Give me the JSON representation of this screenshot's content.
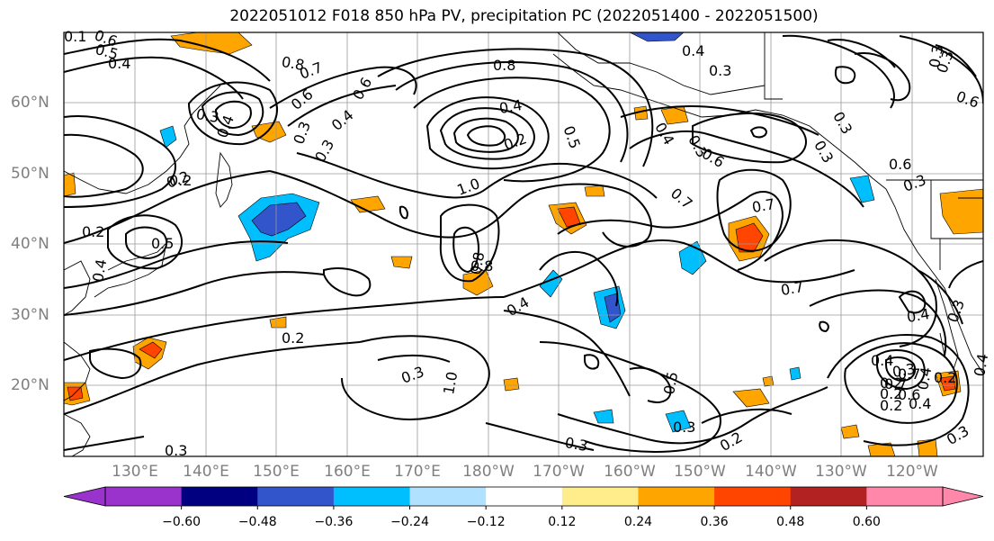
{
  "title": "2022051012 F018 850 hPa PV, precipitation PC (2022051400 - 2022051500)",
  "lat_labels": [
    "60°N",
    "50°N",
    "40°N",
    "30°N",
    "20°N"
  ],
  "lon_labels": [
    "130°E",
    "140°E",
    "150°E",
    "160°E",
    "170°E",
    "180°W",
    "170°W",
    "160°W",
    "150°W",
    "140°W",
    "130°W",
    "120°W"
  ],
  "colorbar": {
    "ticks": [
      "−0.60",
      "−0.48",
      "−0.36",
      "−0.24",
      "−0.12",
      "0.12",
      "0.24",
      "0.36",
      "0.48",
      "0.60"
    ],
    "colors": [
      "#9933cc",
      "#000080",
      "#3355cc",
      "#00bfff",
      "#b0e2ff",
      "#ffffff",
      "#ffec8b",
      "#ffa500",
      "#ff4500",
      "#b22222",
      "#ff88aa"
    ]
  },
  "contour_labels": [
    "0.1",
    "0.6",
    "0.5",
    "0.4",
    "0.8",
    "0.7",
    "0.6",
    "0.3",
    "0.4",
    "0.3",
    "0.8",
    "0.3",
    "0.4",
    "0.3",
    "0.3",
    "0.6",
    "0.3",
    "0.4",
    "0.3",
    "1.0",
    "0.6",
    "0.4",
    "0.3",
    "0.2",
    "0.5",
    "0.8",
    "0.4",
    "0.2",
    "0.6",
    "0.7",
    "0.3",
    "0.2",
    "0.7",
    "0.5",
    "0.3",
    "0.6",
    "0.4",
    "0.4",
    "1.0",
    "0.7",
    "0.5",
    "0.4",
    "0.2",
    "0.3",
    "0.3",
    "0.2",
    "0.8",
    "0.4",
    "0.2",
    "0.4",
    "0.3",
    "0.3",
    "0.3",
    "0.3",
    "0.2",
    "0.2",
    "0.4",
    "0.2",
    "0.4",
    "0.6",
    "0.7",
    "0.7",
    "0.3",
    "0.2"
  ]
}
